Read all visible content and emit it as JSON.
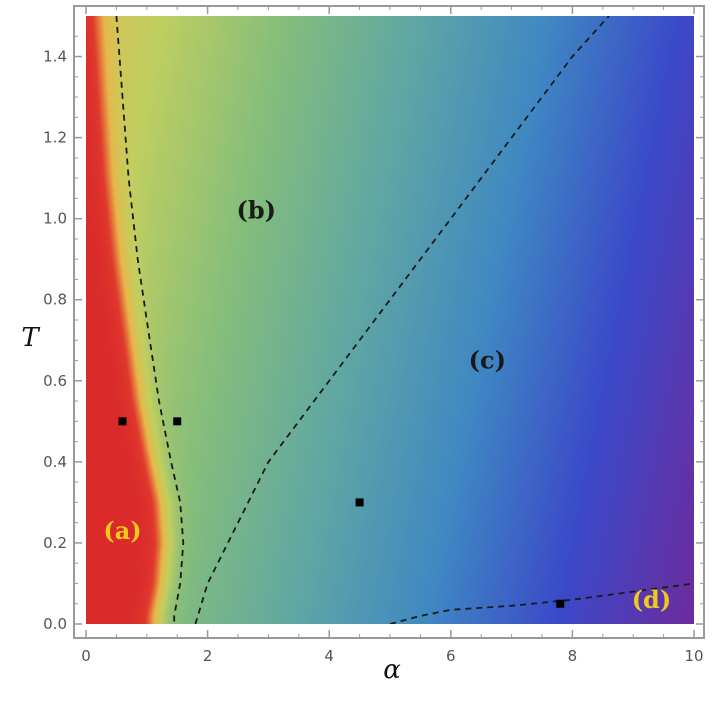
{
  "chart_data": {
    "type": "heatmap",
    "title": "",
    "xlabel": "α",
    "ylabel": "T",
    "xlim": [
      0,
      10
    ],
    "ylim": [
      0,
      1.5
    ],
    "x_ticks": [
      "0",
      "2",
      "4",
      "6",
      "8",
      "10"
    ],
    "y_ticks": [
      "0.0",
      "0.2",
      "0.4",
      "0.6",
      "0.8",
      "1.0",
      "1.2",
      "1.4"
    ],
    "x_tick_values": [
      0,
      2,
      4,
      6,
      8,
      10
    ],
    "y_tick_values": [
      0.0,
      0.2,
      0.4,
      0.6,
      0.8,
      1.0,
      1.2,
      1.4
    ],
    "colormap": [
      "#6a2d9f",
      "#3b49c9",
      "#3f88c2",
      "#5fa6a4",
      "#84bd7c",
      "#c2cf5f",
      "#e8b74a",
      "#e03a2c",
      "#d8252a"
    ],
    "region_labels": [
      {
        "text": "(a)",
        "x": 0.6,
        "y": 0.21,
        "color": "#f0c81e"
      },
      {
        "text": "(b)",
        "x": 2.8,
        "y": 1.0,
        "color": "#1a1a1a"
      },
      {
        "text": "(c)",
        "x": 6.6,
        "y": 0.63,
        "color": "#1a1a1a"
      },
      {
        "text": "(d)",
        "x": 9.3,
        "y": 0.04,
        "color": "#f0c81e"
      }
    ],
    "markers": [
      {
        "x": 0.6,
        "y": 0.5
      },
      {
        "x": 1.5,
        "y": 0.5
      },
      {
        "x": 4.5,
        "y": 0.3
      },
      {
        "x": 7.8,
        "y": 0.05
      }
    ],
    "boundaries": [
      {
        "name": "a-b",
        "points": [
          [
            0.5,
            1.5
          ],
          [
            0.6,
            1.3
          ],
          [
            0.7,
            1.1
          ],
          [
            0.85,
            0.9
          ],
          [
            1.05,
            0.7
          ],
          [
            1.2,
            0.55
          ],
          [
            1.4,
            0.4
          ],
          [
            1.55,
            0.3
          ],
          [
            1.6,
            0.2
          ],
          [
            1.55,
            0.1
          ],
          [
            1.45,
            0.02
          ],
          [
            1.45,
            0.0
          ]
        ]
      },
      {
        "name": "b-c",
        "points": [
          [
            1.8,
            0.0
          ],
          [
            2.0,
            0.1
          ],
          [
            2.5,
            0.25
          ],
          [
            3.0,
            0.4
          ],
          [
            4.0,
            0.6
          ],
          [
            5.0,
            0.8
          ],
          [
            6.0,
            1.0
          ],
          [
            7.0,
            1.2
          ],
          [
            8.0,
            1.4
          ],
          [
            8.6,
            1.5
          ]
        ]
      },
      {
        "name": "c-d",
        "points": [
          [
            5.0,
            0.0
          ],
          [
            5.5,
            0.02
          ],
          [
            6.0,
            0.035
          ],
          [
            7.0,
            0.045
          ],
          [
            8.0,
            0.06
          ],
          [
            9.0,
            0.08
          ],
          [
            10.0,
            0.1
          ]
        ]
      }
    ]
  }
}
